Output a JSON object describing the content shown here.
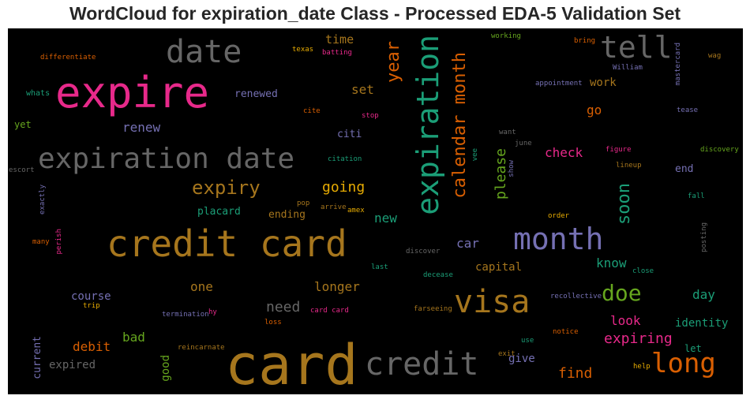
{
  "chart_data": {
    "type": "wordcloud",
    "title": "WordCloud for expiration_date Class - Processed EDA-5 Validation Set",
    "background": "#000000",
    "words": [
      {
        "text": "card",
        "color": "#a6761d"
      },
      {
        "text": "credit card",
        "color": "#a6761d"
      },
      {
        "text": "expire",
        "color": "#e7298a"
      },
      {
        "text": "expiration",
        "color": "#1b9e77"
      },
      {
        "text": "expiration date",
        "color": "#666666"
      },
      {
        "text": "credit",
        "color": "#666666"
      },
      {
        "text": "month",
        "color": "#7570b3"
      },
      {
        "text": "visa",
        "color": "#a6761d"
      },
      {
        "text": "date",
        "color": "#666666"
      },
      {
        "text": "tell",
        "color": "#666666"
      },
      {
        "text": "long",
        "color": "#d95f02"
      },
      {
        "text": "doe",
        "color": "#66a61e"
      },
      {
        "text": "calendar month",
        "color": "#d95f02"
      },
      {
        "text": "expiry",
        "color": "#a6761d"
      },
      {
        "text": "year",
        "color": "#d95f02"
      },
      {
        "text": "soon",
        "color": "#1b9e77"
      },
      {
        "text": "please",
        "color": "#66a61e"
      },
      {
        "text": "going",
        "color": "#e6ab02"
      },
      {
        "text": "expiring",
        "color": "#e7298a"
      },
      {
        "text": "find",
        "color": "#d95f02"
      },
      {
        "text": "need",
        "color": "#666666"
      },
      {
        "text": "check",
        "color": "#e7298a"
      },
      {
        "text": "day",
        "color": "#1b9e77"
      },
      {
        "text": "know",
        "color": "#1b9e77"
      },
      {
        "text": "car",
        "color": "#7570b3"
      },
      {
        "text": "renew",
        "color": "#7570b3"
      },
      {
        "text": "set",
        "color": "#a6761d"
      },
      {
        "text": "look",
        "color": "#e7298a"
      },
      {
        "text": "identity",
        "color": "#1b9e77"
      },
      {
        "text": "new",
        "color": "#1b9e77"
      },
      {
        "text": "capital",
        "color": "#a6761d"
      },
      {
        "text": "longer",
        "color": "#a6761d"
      },
      {
        "text": "one",
        "color": "#a6761d"
      },
      {
        "text": "course",
        "color": "#7570b3"
      },
      {
        "text": "debit",
        "color": "#d95f02"
      },
      {
        "text": "bad",
        "color": "#66a61e"
      },
      {
        "text": "good",
        "color": "#66a61e"
      },
      {
        "text": "current",
        "color": "#7570b3"
      },
      {
        "text": "expired",
        "color": "#666666"
      },
      {
        "text": "give",
        "color": "#7570b3"
      },
      {
        "text": "time",
        "color": "#a6761d"
      },
      {
        "text": "go",
        "color": "#d95f02"
      },
      {
        "text": "work",
        "color": "#a6761d"
      },
      {
        "text": "renewed",
        "color": "#7570b3"
      },
      {
        "text": "citi",
        "color": "#7570b3"
      },
      {
        "text": "placard",
        "color": "#1b9e77"
      },
      {
        "text": "ending",
        "color": "#a6761d"
      },
      {
        "text": "end",
        "color": "#7570b3"
      },
      {
        "text": "let",
        "color": "#1b9e77"
      },
      {
        "text": "yet",
        "color": "#66a61e"
      },
      {
        "text": "whats",
        "color": "#1b9e77"
      },
      {
        "text": "differentiate",
        "color": "#d95f02"
      },
      {
        "text": "texas",
        "color": "#e6ab02"
      },
      {
        "text": "batting",
        "color": "#e7298a"
      },
      {
        "text": "cite",
        "color": "#d95f02"
      },
      {
        "text": "stop",
        "color": "#e7298a"
      },
      {
        "text": "citation",
        "color": "#1b9e77"
      },
      {
        "text": "vee",
        "color": "#1b9e77"
      },
      {
        "text": "show",
        "color": "#7570b3"
      },
      {
        "text": "june",
        "color": "#666666"
      },
      {
        "text": "want",
        "color": "#666666"
      },
      {
        "text": "working",
        "color": "#66a61e"
      },
      {
        "text": "bring",
        "color": "#d95f02"
      },
      {
        "text": "William",
        "color": "#7570b3"
      },
      {
        "text": "mastercard",
        "color": "#7570b3"
      },
      {
        "text": "wag",
        "color": "#a6761d"
      },
      {
        "text": "appointment",
        "color": "#7570b3"
      },
      {
        "text": "tease",
        "color": "#7570b3"
      },
      {
        "text": "figure",
        "color": "#e7298a"
      },
      {
        "text": "discovery",
        "color": "#66a61e"
      },
      {
        "text": "lineup",
        "color": "#a6761d"
      },
      {
        "text": "fall",
        "color": "#1b9e77"
      },
      {
        "text": "posting",
        "color": "#666666"
      },
      {
        "text": "order",
        "color": "#e6ab02"
      },
      {
        "text": "close",
        "color": "#1b9e77"
      },
      {
        "text": "escort",
        "color": "#666666"
      },
      {
        "text": "exactly",
        "color": "#7570b3"
      },
      {
        "text": "perish",
        "color": "#e7298a"
      },
      {
        "text": "many",
        "color": "#d95f02"
      },
      {
        "text": "pop",
        "color": "#a6761d"
      },
      {
        "text": "arrive",
        "color": "#a6761d"
      },
      {
        "text": "amex",
        "color": "#e6ab02"
      },
      {
        "text": "discover",
        "color": "#666666"
      },
      {
        "text": "last",
        "color": "#1b9e77"
      },
      {
        "text": "decease",
        "color": "#1b9e77"
      },
      {
        "text": "recollective",
        "color": "#7570b3"
      },
      {
        "text": "trip",
        "color": "#e6ab02"
      },
      {
        "text": "termination",
        "color": "#7570b3"
      },
      {
        "text": "hy",
        "color": "#e7298a"
      },
      {
        "text": "loss",
        "color": "#d95f02"
      },
      {
        "text": "card card",
        "color": "#e7298a"
      },
      {
        "text": "farseeing",
        "color": "#a6761d"
      },
      {
        "text": "notice",
        "color": "#d95f02"
      },
      {
        "text": "use",
        "color": "#1b9e77"
      },
      {
        "text": "exit",
        "color": "#a6761d"
      },
      {
        "text": "help",
        "color": "#e6ab02"
      },
      {
        "text": "reincarnate",
        "color": "#a6761d"
      }
    ]
  }
}
